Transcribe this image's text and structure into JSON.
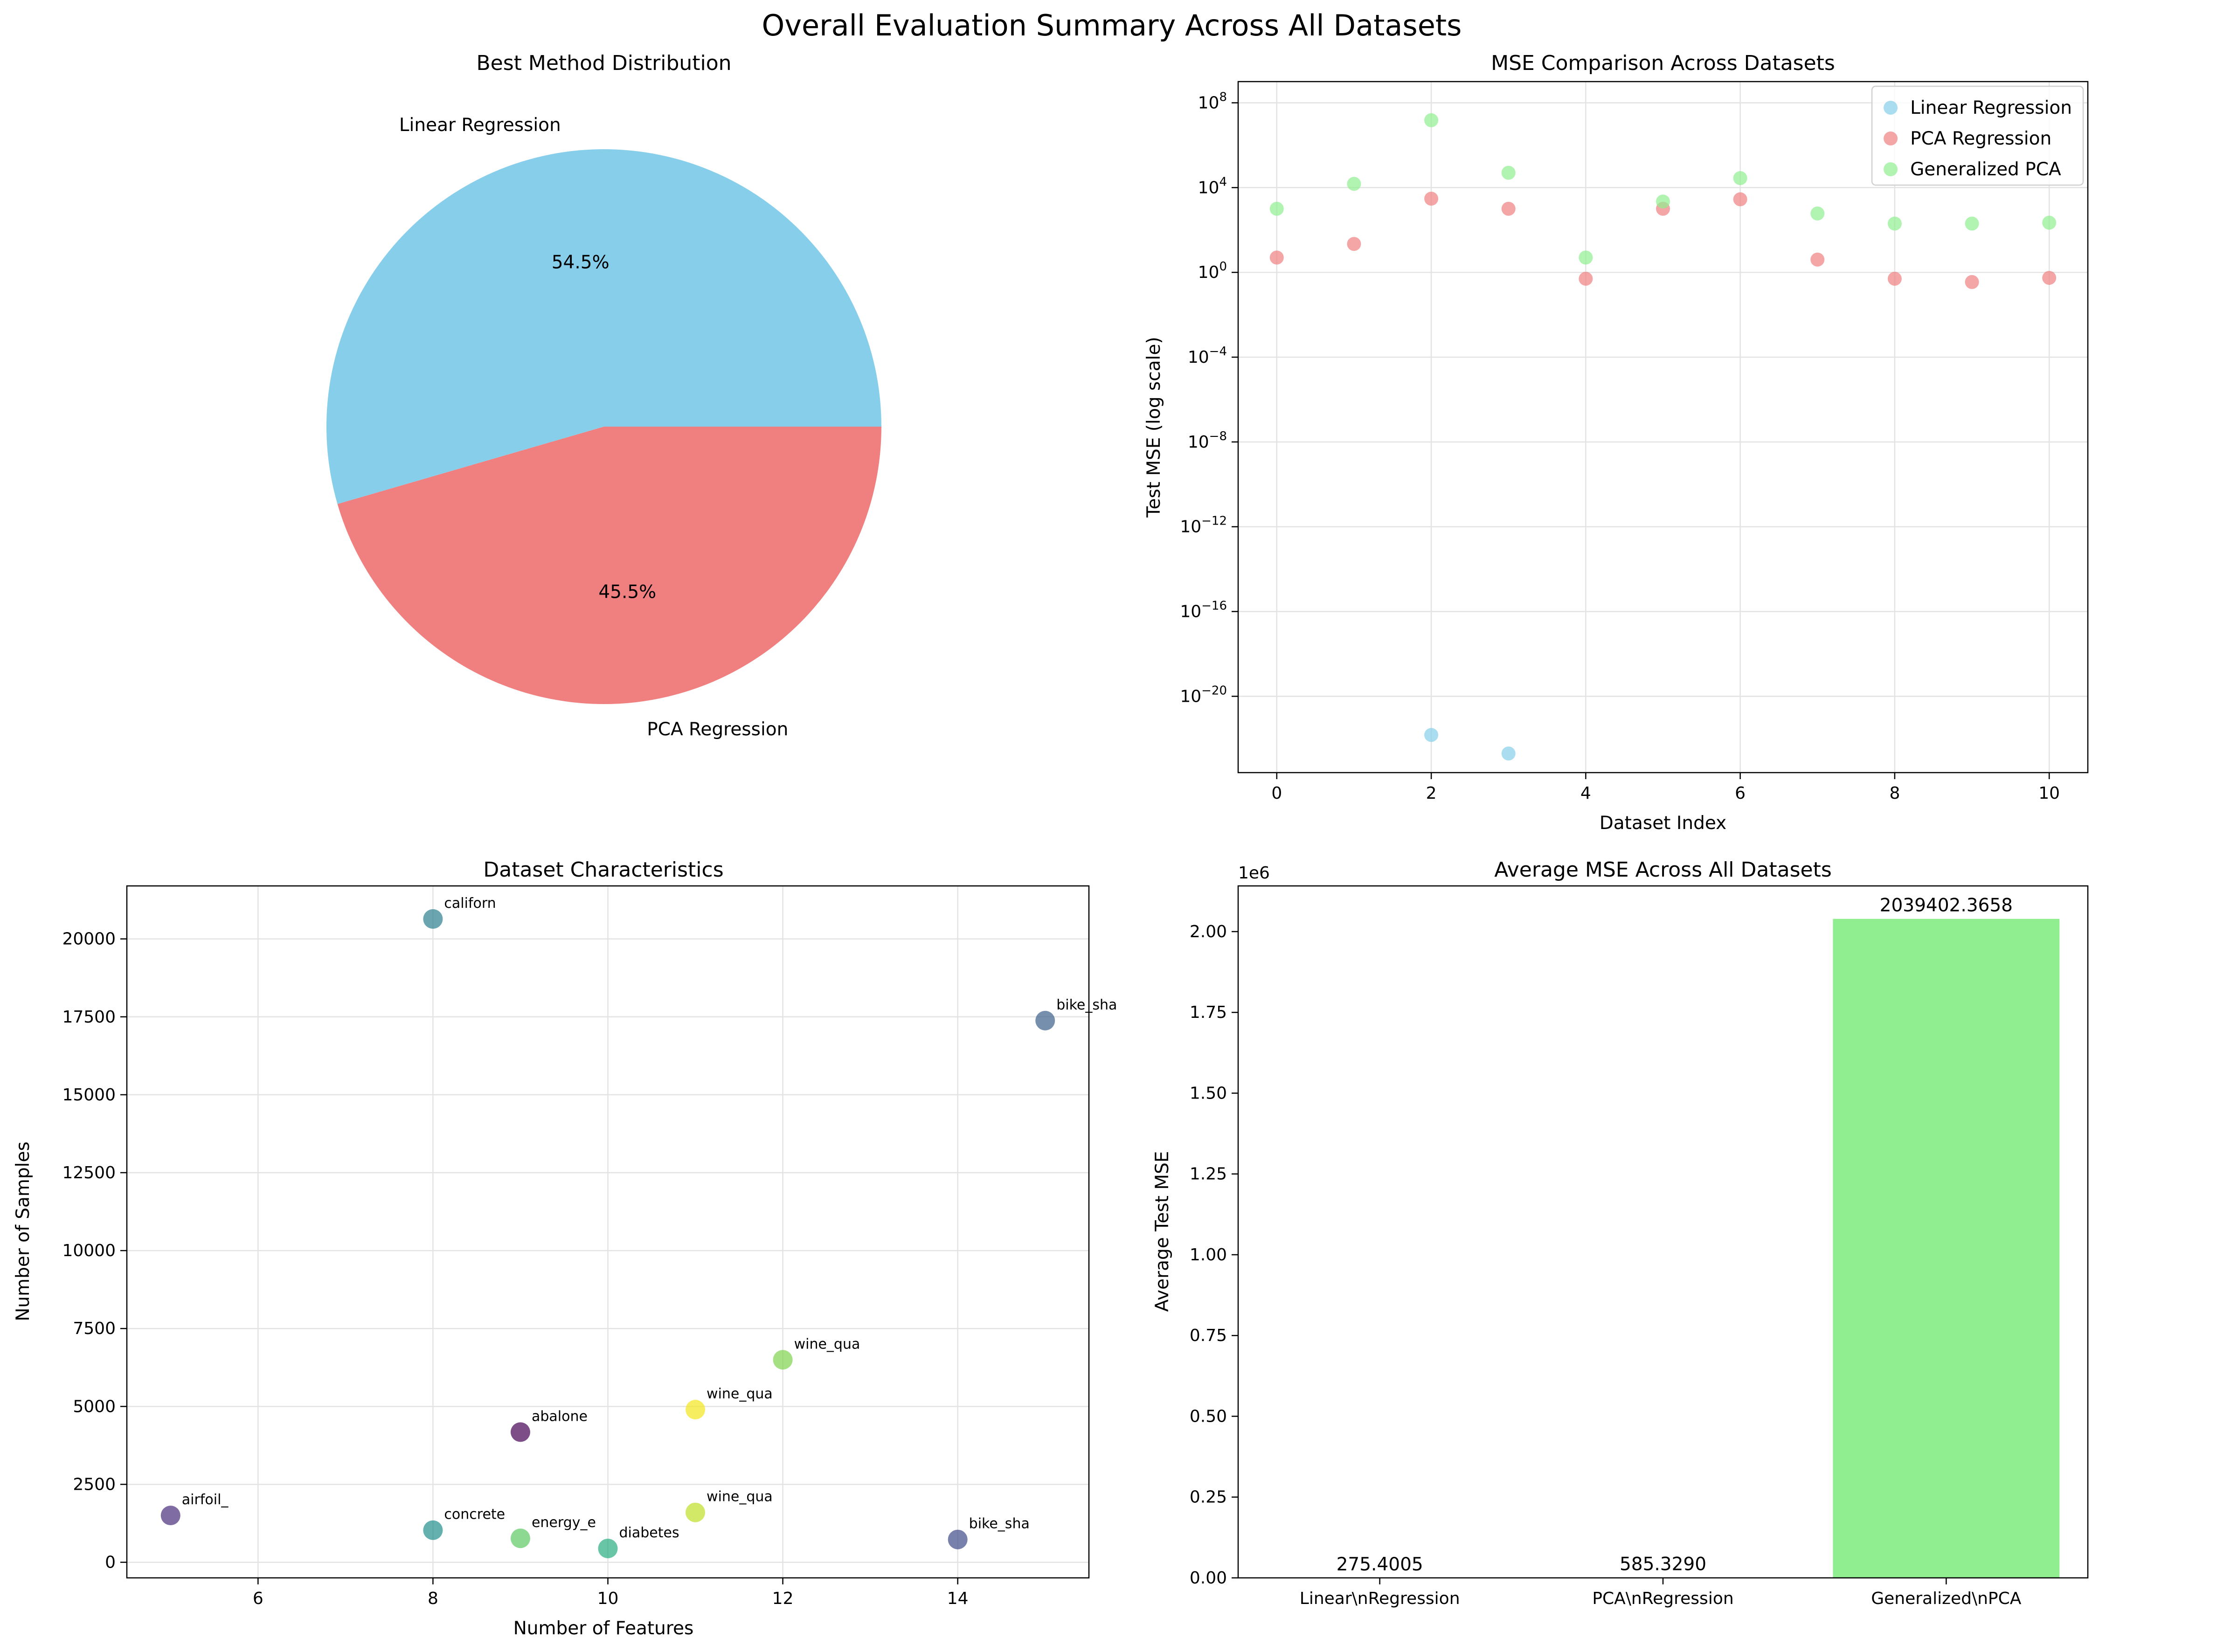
{
  "figure": {
    "title": "Overall Evaluation Summary Across All Datasets"
  },
  "chart_data": [
    {
      "type": "pie",
      "title": "Best Method Distribution",
      "labels": [
        "Linear Regression",
        "PCA Regression"
      ],
      "values": [
        54.5,
        45.5
      ],
      "pct_labels": [
        "54.5%",
        "45.5%"
      ],
      "colors": [
        "#87ceeb",
        "#f08080"
      ]
    },
    {
      "type": "scatter",
      "title": "MSE Comparison Across Datasets",
      "xlabel": "Dataset Index",
      "ylabel": "Test MSE (log scale)",
      "yscale": "log",
      "xlim": [
        -0.5,
        10.5
      ],
      "ylim_exp": [
        -23.6,
        9.0
      ],
      "x_ticks": [
        "0",
        "2",
        "4",
        "6",
        "8",
        "10"
      ],
      "y_tick_exponents": [
        "8",
        "4",
        "0",
        "−4",
        "−8",
        "−12",
        "−16",
        "−20"
      ],
      "legend_position": "top-right",
      "grid": true,
      "series": [
        {
          "name": "Linear Regression",
          "color": "#87ceeb",
          "points": [
            [
              2,
              1.5e-22
            ],
            [
              3,
              2e-23
            ]
          ]
        },
        {
          "name": "PCA Regression",
          "color": "#f08080",
          "points": [
            [
              0,
              5.0
            ],
            [
              1,
              22
            ],
            [
              2,
              3000
            ],
            [
              3,
              1000
            ],
            [
              4,
              0.5
            ],
            [
              5,
              1000
            ],
            [
              6,
              2800
            ],
            [
              7,
              4.0
            ],
            [
              8,
              0.5
            ],
            [
              9,
              0.35
            ],
            [
              10,
              0.55
            ]
          ]
        },
        {
          "name": "Generalized PCA",
          "color": "#90ee90",
          "points": [
            [
              0,
              1000
            ],
            [
              1,
              15000
            ],
            [
              2,
              15000000.0
            ],
            [
              3,
              50000
            ],
            [
              4,
              5.0
            ],
            [
              5,
              2200
            ],
            [
              6,
              28000
            ],
            [
              7,
              600
            ],
            [
              8,
              200
            ],
            [
              9,
              200
            ],
            [
              10,
              220
            ]
          ]
        }
      ]
    },
    {
      "type": "scatter",
      "title": "Dataset Characteristics",
      "xlabel": "Number of Features",
      "ylabel": "Number of Samples",
      "xlim": [
        4.5,
        15.5
      ],
      "ylim": [
        -500,
        21700
      ],
      "x_ticks": [
        "6",
        "8",
        "10",
        "12",
        "14"
      ],
      "y_ticks": [
        "0",
        "2500",
        "5000",
        "7500",
        "10000",
        "12500",
        "15000",
        "17500",
        "20000"
      ],
      "grid": true,
      "points": [
        {
          "x": 8,
          "y": 20640,
          "label": "californ",
          "color": "#2c7f8e"
        },
        {
          "x": 15,
          "y": 17379,
          "label": "bike_sha",
          "color": "#3b5f8a"
        },
        {
          "x": 12,
          "y": 6497,
          "label": "wine_qua",
          "color": "#7fd34e"
        },
        {
          "x": 11,
          "y": 4898,
          "label": "wine_qua",
          "color": "#f3e51e"
        },
        {
          "x": 9,
          "y": 4177,
          "label": "abalone",
          "color": "#440154"
        },
        {
          "x": 5,
          "y": 1503,
          "label": "airfoil_",
          "color": "#472d7b"
        },
        {
          "x": 11,
          "y": 1599,
          "label": "wine_qua",
          "color": "#bddf26"
        },
        {
          "x": 8,
          "y": 1030,
          "label": "concrete",
          "color": "#218e8d"
        },
        {
          "x": 9,
          "y": 768,
          "label": "energy_e",
          "color": "#5ec962"
        },
        {
          "x": 10,
          "y": 442,
          "label": "diabetes",
          "color": "#28ae80"
        },
        {
          "x": 14,
          "y": 731,
          "label": "bike_sha",
          "color": "#3e4a89"
        }
      ]
    },
    {
      "type": "bar",
      "title": "Average MSE Across All Datasets",
      "ylabel": "Average Test MSE",
      "offset_label": "1e6",
      "categories": [
        "Linear\\nRegression",
        "PCA\\nRegression",
        "Generalized\\nPCA"
      ],
      "values": [
        275.4005,
        585.329,
        2039402.3658
      ],
      "value_labels": [
        "275.4005",
        "585.3290",
        "2039402.3658"
      ],
      "colors": [
        "#87ceeb",
        "#f08080",
        "#90ee90"
      ],
      "ylim": [
        0,
        2141372
      ],
      "y_ticks": [
        "0.00",
        "0.25",
        "0.50",
        "0.75",
        "1.00",
        "1.25",
        "1.50",
        "1.75",
        "2.00"
      ]
    }
  ]
}
